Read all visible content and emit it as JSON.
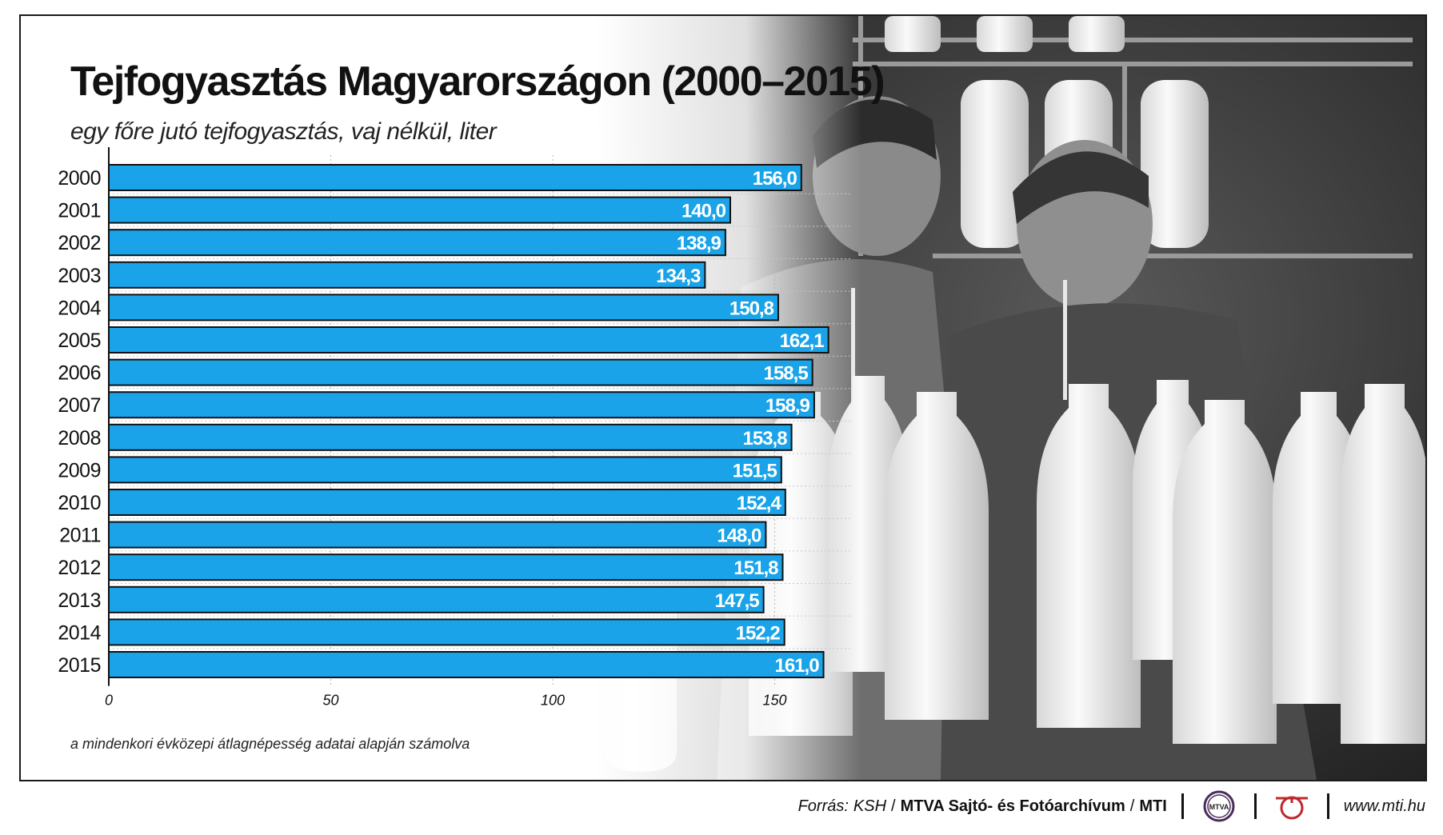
{
  "chart_data": {
    "type": "bar",
    "orientation": "horizontal",
    "title": "Tejfogyasztás Magyarországon (2000–2015)",
    "subtitle": "egy főre jutó tejfogyasztás, vaj nélkül, liter",
    "categories": [
      "2000",
      "2001",
      "2002",
      "2003",
      "2004",
      "2005",
      "2006",
      "2007",
      "2008",
      "2009",
      "2010",
      "2011",
      "2012",
      "2013",
      "2014",
      "2015"
    ],
    "values": [
      156.0,
      140.0,
      138.9,
      134.3,
      150.8,
      162.1,
      158.5,
      158.9,
      153.8,
      151.5,
      152.4,
      148.0,
      151.8,
      147.5,
      152.2,
      161.0
    ],
    "value_labels": [
      "156,0",
      "140,0",
      "138,9",
      "134,3",
      "150,8",
      "162,1",
      "158,5",
      "158,9",
      "153,8",
      "151,5",
      "152,4",
      "148,0",
      "151,8",
      "147,5",
      "152,2",
      "161,0"
    ],
    "x_ticks": [
      0,
      50,
      100,
      150
    ],
    "xlim": [
      0,
      167
    ],
    "grid": true,
    "bar_color": "#1aa3e8",
    "footnote": "a mindenkori évközepi átlagnépesség adatai alapján számolva"
  },
  "footer": {
    "source_label": "Forrás:",
    "source_ksh": "KSH",
    "separator": "/",
    "source_mtva": "MTVA Sajtó- és Fotóarchívum",
    "source_mti": "MTI",
    "logo1_text": "MTVA",
    "url": "www.mti.hu",
    "logo1_icon": "mtva-logo-icon",
    "logo2_icon": "mti-logo-icon"
  }
}
